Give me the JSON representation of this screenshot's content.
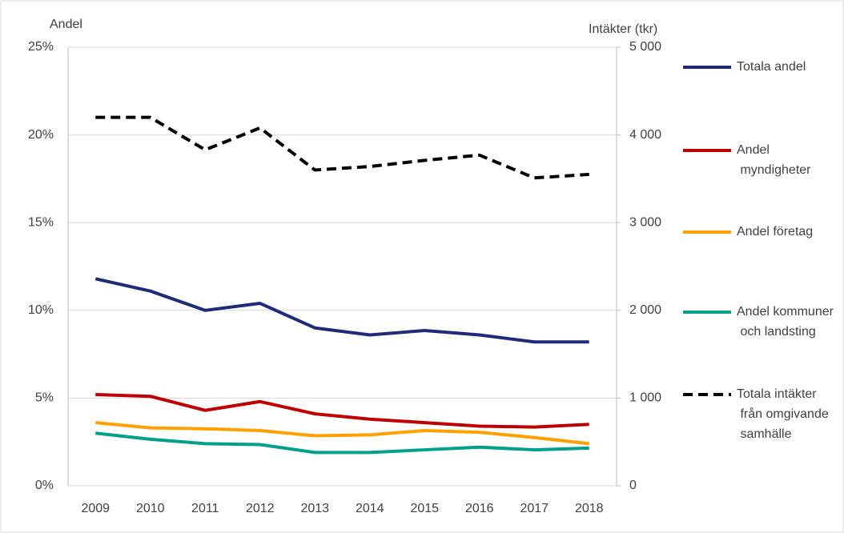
{
  "chart_data": {
    "type": "line",
    "ylabel": "Andel",
    "y2label": "Intäkter (tkr)",
    "categories": [
      "2009",
      "2010",
      "2011",
      "2012",
      "2013",
      "2014",
      "2015",
      "2016",
      "2017",
      "2018"
    ],
    "series": [
      {
        "name": "Totala andel",
        "color": "#1f2a7a",
        "values": [
          11.8,
          11.1,
          10.0,
          10.4,
          9.0,
          8.6,
          8.85,
          8.6,
          8.2,
          8.2
        ]
      },
      {
        "name": "Andel myndigheter",
        "color": "#c00000",
        "values": [
          5.2,
          5.1,
          4.3,
          4.8,
          4.1,
          3.8,
          3.6,
          3.4,
          3.35,
          3.5
        ]
      },
      {
        "name": "Andel företag",
        "color": "#ffa000",
        "values": [
          3.6,
          3.3,
          3.25,
          3.15,
          2.85,
          2.9,
          3.15,
          3.05,
          2.75,
          2.4
        ]
      },
      {
        "name": "Andel kommuner och landsting",
        "color": "#00a08a",
        "values": [
          3.0,
          2.65,
          2.4,
          2.35,
          1.9,
          1.9,
          2.05,
          2.2,
          2.05,
          2.15
        ]
      },
      {
        "name": "Totala intäkter från omgivande samhälle",
        "color": "#000000",
        "dashed": true,
        "axis": "y2",
        "values": [
          4200,
          4200,
          3830,
          4080,
          3600,
          3640,
          3710,
          3770,
          3510,
          3550
        ]
      }
    ],
    "ylim": [
      0,
      25
    ],
    "yticks": [
      {
        "value": 0,
        "label": "0%"
      },
      {
        "value": 5,
        "label": "5%"
      },
      {
        "value": 10,
        "label": "10%"
      },
      {
        "value": 15,
        "label": "15%"
      },
      {
        "value": 20,
        "label": "20%"
      },
      {
        "value": 25,
        "label": "25%"
      }
    ],
    "y2lim": [
      0,
      5000
    ],
    "y2ticks": [
      0,
      {
        "value": 1000,
        "label": "1 000"
      },
      {
        "value": 2000,
        "label": "2 000"
      },
      {
        "value": 3000,
        "label": "3 000"
      },
      {
        "value": 4000,
        "label": "4 000"
      },
      {
        "value": 5000,
        "label": "5 000"
      }
    ],
    "grid": true,
    "legend": "right"
  }
}
